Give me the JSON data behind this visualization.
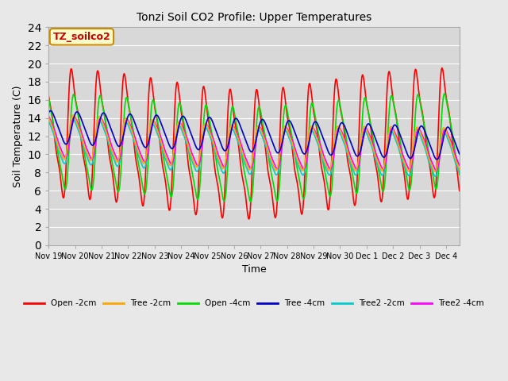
{
  "title": "Tonzi Soil CO2 Profile: Upper Temperatures",
  "xlabel": "Time",
  "ylabel": "Soil Temperature (C)",
  "ylim": [
    0,
    24
  ],
  "yticks": [
    0,
    2,
    4,
    6,
    8,
    10,
    12,
    14,
    16,
    18,
    20,
    22,
    24
  ],
  "x_labels": [
    "Nov 19",
    "Nov 20",
    "Nov 21",
    "Nov 22",
    "Nov 23",
    "Nov 24",
    "Nov 25",
    "Nov 26",
    "Nov 27",
    "Nov 28",
    "Nov 29",
    "Nov 30",
    "Dec 1",
    "Dec 2",
    "Dec 3",
    "Dec 4"
  ],
  "watermark": "TZ_soilco2",
  "background_color": "#e8e8e8",
  "plot_bg_color": "#d8d8d8",
  "grid_color": "#ffffff",
  "series": {
    "Open -2cm": {
      "color": "#ff0000",
      "lw": 1.2
    },
    "Tree -2cm": {
      "color": "#ffa500",
      "lw": 1.2
    },
    "Open -4cm": {
      "color": "#00dd00",
      "lw": 1.2
    },
    "Tree -4cm": {
      "color": "#0000cc",
      "lw": 1.2
    },
    "Tree2 -2cm": {
      "color": "#00cccc",
      "lw": 1.2
    },
    "Tree2 -4cm": {
      "color": "#ff00ff",
      "lw": 1.2
    }
  }
}
